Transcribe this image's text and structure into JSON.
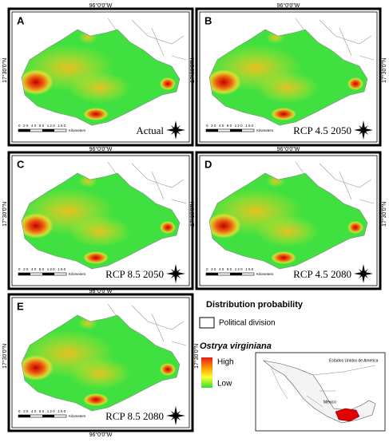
{
  "panels": [
    {
      "letter": "A",
      "label": "Actual",
      "top_label": "96°0'0\"W",
      "side_label": "17°30'0\"N",
      "scale_labels": "0 20 40 80 120 160",
      "scale_unit": "Kilometers"
    },
    {
      "letter": "B",
      "label": "RCP 4.5 2050",
      "top_label": "96°0'0\"W",
      "side_label": "17°30'0\"N",
      "right_label": "17°30'0\"N",
      "scale_labels": "0 20 40 80 120 160",
      "scale_unit": "Kilometers"
    },
    {
      "letter": "C",
      "label": "RCP 8.5 2050",
      "top_label": "96°0'0\"W",
      "side_label": "17°30'0\"N",
      "scale_labels": "0 20 40 80 120 160",
      "scale_unit": "Kilometers"
    },
    {
      "letter": "D",
      "label": "RCP 4.5 2080",
      "top_label": "96°0'0\"W",
      "side_label": "17°30'0\"N",
      "right_label": "17°30'0\"N",
      "scale_labels": "0 20 40 80 120 160",
      "scale_unit": "Kilometers"
    },
    {
      "letter": "E",
      "label": "RCP 8.5 2080",
      "top_label": "96°0'0\"W",
      "side_label": "17°30'0\"N",
      "right_label": "17°30'0\"N",
      "bottom_label": "96°0'0\"W",
      "scale_labels": "0 20 40 80 120 160",
      "scale_unit": "Kilometers"
    }
  ],
  "legend": {
    "title": "Distribution probability",
    "political_division": "Political division",
    "species": "Ostrya virginiana",
    "high": "High",
    "low": "Low"
  },
  "inset": {
    "country_label": "Estados Unidos de America",
    "mexico_label": "México"
  }
}
